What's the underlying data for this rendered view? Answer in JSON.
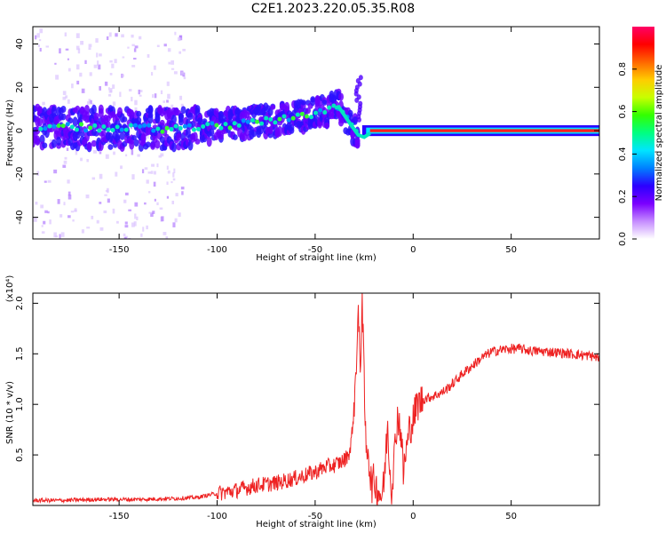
{
  "title": "C2E1.2023.220.05.35.R08",
  "chart_data": [
    {
      "type": "heatmap",
      "xlabel": "Height of straight line (km)",
      "ylabel": "Frequency (Hz)",
      "xlim": [
        -194,
        95
      ],
      "ylim": [
        -50,
        48
      ],
      "x_ticks": [
        -150,
        -100,
        -50,
        0,
        50
      ],
      "y_ticks": [
        -40,
        -20,
        0,
        20,
        40
      ],
      "colorbar": {
        "label": "Normalized spectral amplitude",
        "range": [
          0,
          1
        ],
        "ticks": [
          0.0,
          0.2,
          0.4,
          0.6,
          0.8
        ],
        "colors": [
          "#ffffff",
          "#c58cff",
          "#7b00ff",
          "#2b00ff",
          "#0080ff",
          "#00e5ff",
          "#00ff80",
          "#33ff00",
          "#c8ff00",
          "#ffcc00",
          "#ff6600",
          "#ff0000",
          "#ff0066"
        ]
      },
      "ridge": [
        {
          "x": -194,
          "f": 2
        },
        {
          "x": -150,
          "f": 1
        },
        {
          "x": -120,
          "f": 1
        },
        {
          "x": -100,
          "f": 2
        },
        {
          "x": -80,
          "f": 4
        },
        {
          "x": -60,
          "f": 6
        },
        {
          "x": -45,
          "f": 9
        },
        {
          "x": -38,
          "f": 11
        },
        {
          "x": -32,
          "f": 3
        },
        {
          "x": -28,
          "f": -2
        },
        {
          "x": -25,
          "f": -3
        },
        {
          "x": -20,
          "f": 0
        },
        {
          "x": 0,
          "f": 0
        },
        {
          "x": 95,
          "f": 0
        }
      ],
      "noise_band_x": [
        -194,
        -117
      ]
    },
    {
      "type": "line",
      "xlabel": "Height of straight line (km)",
      "ylabel": "SNR (10 * v/v)",
      "multiplier_label": "(x10⁴)",
      "xlim": [
        -194,
        95
      ],
      "ylim": [
        0,
        2.1
      ],
      "x_ticks": [
        -150,
        -100,
        -50,
        0,
        50
      ],
      "y_ticks": [
        0.5,
        1.0,
        1.5,
        2.0
      ],
      "series": [
        {
          "color": "#ee2222",
          "x": [
            -194,
            -180,
            -160,
            -140,
            -120,
            -110,
            -100,
            -90,
            -80,
            -70,
            -60,
            -50,
            -45,
            -40,
            -35,
            -32,
            -30,
            -28,
            -27,
            -26,
            -25,
            -24,
            -23,
            -22,
            -21,
            -20,
            -18,
            -16,
            -15,
            -14,
            -13,
            -12,
            -11,
            -10,
            -8,
            -6,
            -5,
            -4,
            -3,
            -2,
            0,
            2,
            5,
            10,
            15,
            20,
            25,
            30,
            35,
            40,
            45,
            50,
            55,
            60,
            70,
            80,
            90,
            95
          ],
          "y": [
            0.05,
            0.05,
            0.06,
            0.06,
            0.07,
            0.08,
            0.12,
            0.15,
            0.2,
            0.22,
            0.27,
            0.33,
            0.38,
            0.4,
            0.45,
            0.55,
            1.0,
            1.9,
            1.3,
            2.1,
            1.2,
            0.5,
            0.6,
            0.3,
            0.2,
            0.25,
            0.15,
            0.1,
            0.2,
            0.5,
            0.8,
            0.4,
            0.15,
            0.4,
            0.9,
            0.7,
            0.3,
            0.5,
            0.6,
            0.75,
            0.85,
            1.0,
            1.05,
            1.08,
            1.12,
            1.2,
            1.3,
            1.38,
            1.46,
            1.52,
            1.54,
            1.55,
            1.55,
            1.53,
            1.52,
            1.5,
            1.48,
            1.46
          ]
        }
      ]
    }
  ]
}
